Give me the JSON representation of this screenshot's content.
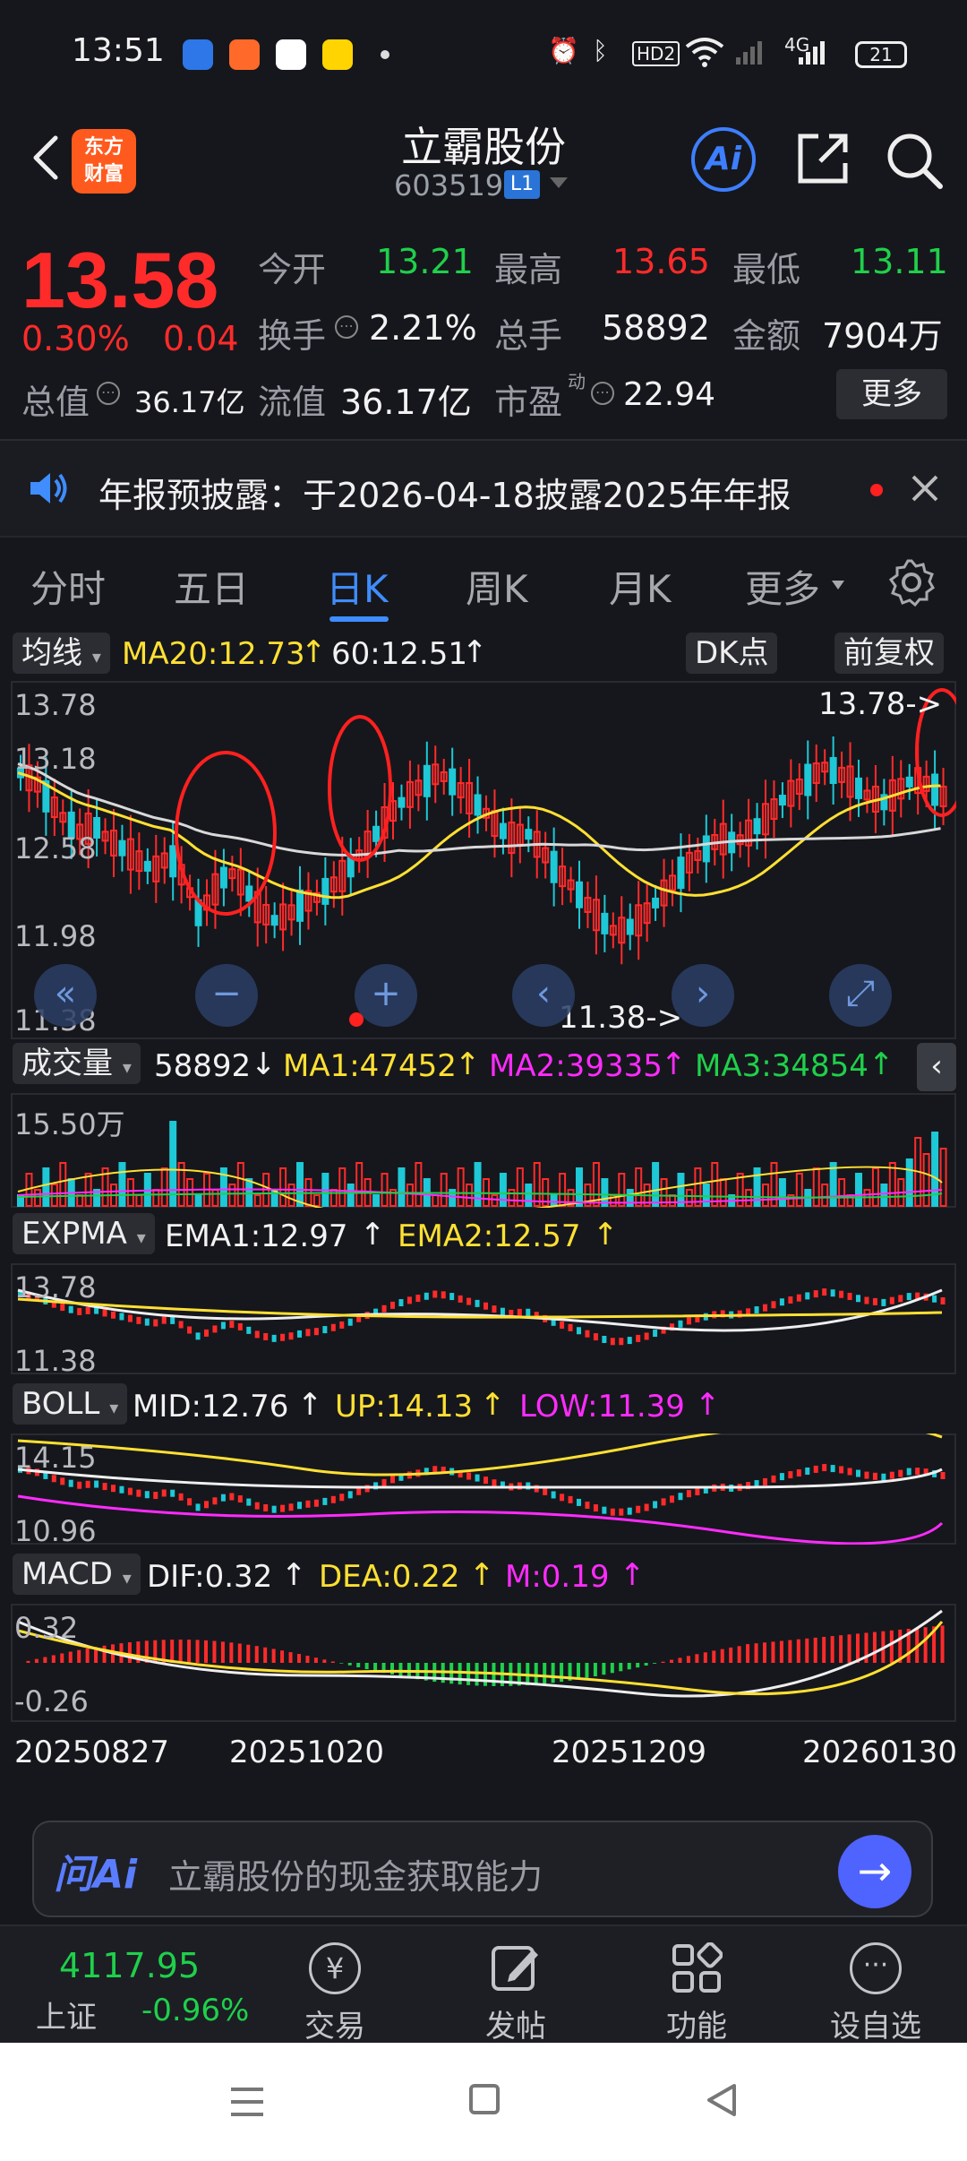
{
  "status_bar": {
    "time": "13:51",
    "network": "4G",
    "hd_badge": "HD2",
    "battery": "21",
    "icons": [
      "bird-app-icon",
      "grid-app-icon",
      "paw-app-icon",
      "smiley-app-icon",
      "alarm-icon",
      "bluetooth-icon",
      "wifi-icon",
      "signal-icon"
    ]
  },
  "header": {
    "logo_line1": "东方",
    "logo_line2": "财富",
    "stock_name": "立霸股份",
    "stock_code": "603519",
    "level_badge": "L1",
    "ai_label": "Ai"
  },
  "quote": {
    "price": "13.58",
    "change_pct": "0.30%",
    "change_abs": "0.04",
    "open_label": "今开",
    "open": "13.21",
    "high_label": "最高",
    "high": "13.65",
    "low_label": "最低",
    "low": "13.11",
    "turnover_label": "换手",
    "turnover": "2.21%",
    "volume_label": "总手",
    "volume": "58892",
    "amount_label": "金额",
    "amount": "7904万",
    "total_cap_label": "总值",
    "total_cap": "36.17亿",
    "float_cap_label": "流值",
    "float_cap": "36.17亿",
    "pe_label": "市盈",
    "pe_sup": "动",
    "pe": "22.94",
    "more_label": "更多"
  },
  "notice": {
    "text": "年报预披露：于2026-04-18披露2025年年报"
  },
  "tabs": [
    {
      "label": "分时",
      "active": false
    },
    {
      "label": "五日",
      "active": false
    },
    {
      "label": "日K",
      "active": true
    },
    {
      "label": "周K",
      "active": false
    },
    {
      "label": "月K",
      "active": false
    },
    {
      "label": "更多",
      "active": false
    }
  ],
  "kline": {
    "indicator_select": "均线",
    "ma20": "MA20:12.73",
    "ma60": "60:12.51",
    "dk_label": "DK点",
    "adj_label": "前复权",
    "y_labels": [
      "13.78",
      "13.18",
      "12.58",
      "11.98",
      "11.38"
    ],
    "max_marker": "13.78->",
    "min_marker": "11.38->"
  },
  "volume": {
    "select": "成交量",
    "value": "58892",
    "ma1": "MA1:47452",
    "ma2": "MA2:39335",
    "ma3": "MA3:34854",
    "y_label": "15.50万"
  },
  "expma": {
    "select": "EXPMA",
    "ema1": "EMA1:12.97",
    "ema2": "EMA2:12.57",
    "y_top": "13.78",
    "y_bottom": "11.38"
  },
  "boll": {
    "select": "BOLL",
    "mid": "MID:12.76",
    "up": "UP:14.13",
    "low": "LOW:11.39",
    "y_top": "14.15",
    "y_bottom": "10.96"
  },
  "macd": {
    "select": "MACD",
    "dif": "DIF:0.32",
    "dea": "DEA:0.22",
    "m": "M:0.19",
    "y_top": "0.32",
    "y_bottom": "-0.26"
  },
  "dates": [
    "20250827",
    "20251020",
    "20251209",
    "20260130"
  ],
  "ai_input": {
    "brand": "问Ai",
    "placeholder": "立霸股份的现金获取能力"
  },
  "bottom_nav": {
    "index_value": "4117.95",
    "index_name": "上证",
    "index_change": "-0.96%",
    "items": [
      {
        "label": "交易",
        "icon": "yen-icon"
      },
      {
        "label": "发帖",
        "icon": "edit-icon"
      },
      {
        "label": "功能",
        "icon": "grid-icon"
      },
      {
        "label": "设自选",
        "icon": "more-circle-icon"
      }
    ]
  },
  "colors": {
    "up": "#ff2b2b",
    "down": "#1fd04b",
    "accent": "#3f8dff",
    "ma_yellow": "#ffe033",
    "ma_magenta": "#ff2bff"
  }
}
